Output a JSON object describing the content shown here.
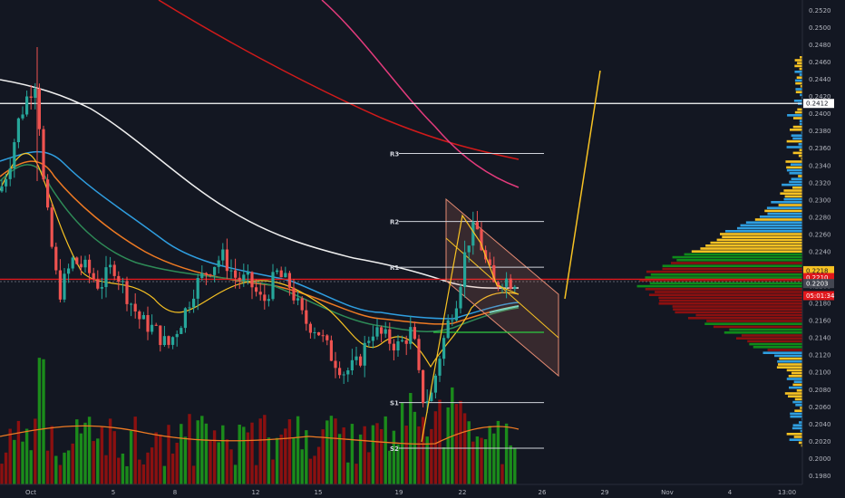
{
  "chart_data": {
    "type": "candlestick",
    "title": "",
    "ylim": [
      0.197,
      0.2532
    ],
    "y_ticks": [
      "0.1980",
      "0.2000",
      "0.2020",
      "0.2040",
      "0.2060",
      "0.2080",
      "0.2100",
      "0.2120",
      "0.2140",
      "0.2160",
      "0.2180",
      "0.2200",
      "0.2220",
      "0.2240",
      "0.2260",
      "0.2280",
      "0.2300",
      "0.2320",
      "0.2340",
      "0.2360",
      "0.2380",
      "0.2400",
      "0.2420",
      "0.2440",
      "0.2460",
      "0.2480",
      "0.2500",
      "0.2520"
    ],
    "x_ticks": [
      "Oct",
      "5",
      "8",
      "12",
      "15",
      "19",
      "22",
      "26",
      "29",
      "Nov",
      "4",
      "13:00"
    ],
    "price_tags": [
      {
        "label": "0.2412",
        "value": 0.2412,
        "bg": "#ffffff",
        "fg": "#131722"
      },
      {
        "label": "0.2218",
        "value": 0.2218,
        "bg": "#f7c223",
        "fg": "#131722"
      },
      {
        "label": "0.2210",
        "value": 0.221,
        "bg": "#e0181c",
        "fg": "#ffffff"
      },
      {
        "label": "0.2203",
        "value": 0.2203,
        "bg": "#434651",
        "fg": "#ffffff"
      },
      {
        "label": "05:01:34",
        "value": 0.2189,
        "bg": "#e0181c",
        "fg": "#ffffff"
      }
    ],
    "pivots": [
      {
        "label": "R3",
        "value": 0.2354
      },
      {
        "label": "R2",
        "value": 0.2275
      },
      {
        "label": "R1",
        "value": 0.2222
      },
      {
        "label": "S1",
        "value": 0.2065
      },
      {
        "label": "S2",
        "value": 0.2012
      }
    ],
    "horizontal_lines": [
      {
        "value": 0.2412,
        "color": "#ffffff"
      },
      {
        "value": 0.2208,
        "color": "#e0181c"
      }
    ],
    "colors": {
      "up": "#26a69a",
      "down": "#ef5350",
      "vol_up": "#1b8b1b",
      "vol_down": "#8b1010",
      "background": "#131722"
    }
  }
}
